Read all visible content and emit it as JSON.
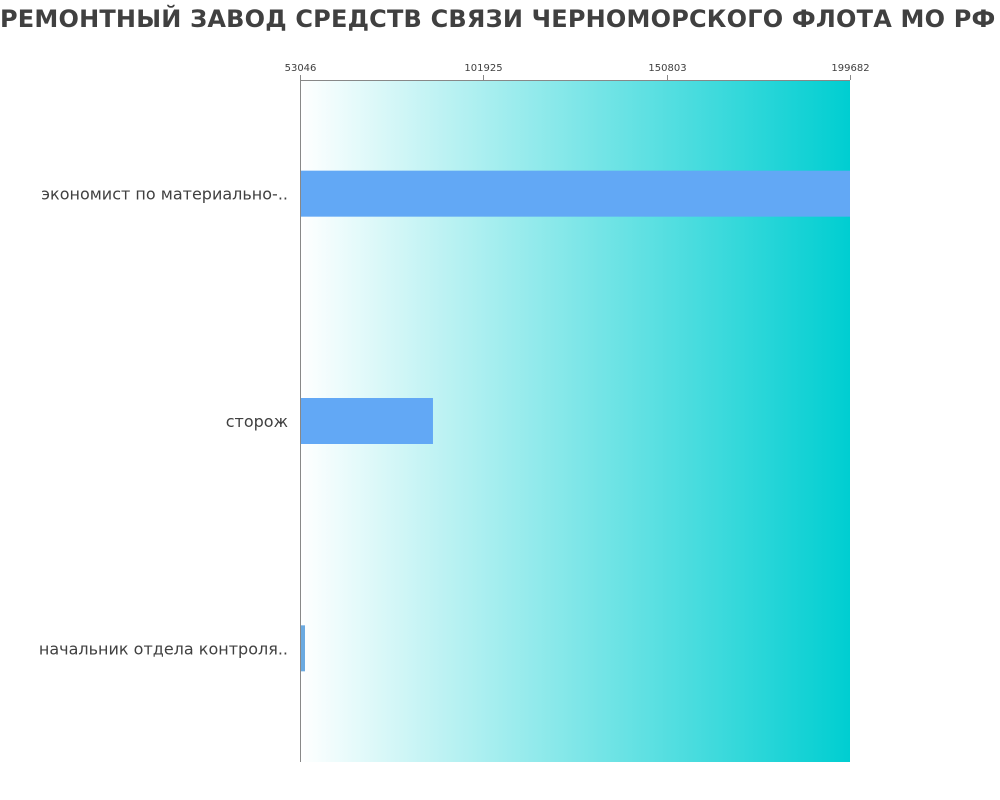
{
  "title": "РЕМОНТНЫЙ ЗАВОД СРЕДСТВ СВЯЗИ ЧЕРНОМОРСКОГО ФЛОТА МО РФ ФИЛИАЛ ФГУП",
  "chart_data": {
    "type": "bar",
    "orientation": "horizontal",
    "title": "РЕМОНТНЫЙ ЗАВОД СРЕДСТВ СВЯЗИ ЧЕРНОМОРСКОГО ФЛОТА МО РФ ФИЛИАЛ ФГУП",
    "categories": [
      "экономист по материально-..",
      "сторож",
      "начальник отдела контроля.."
    ],
    "values": [
      199682,
      88500,
      54300
    ],
    "xlim": [
      53046,
      199682
    ],
    "xticks": [
      53046,
      101925,
      150803,
      199682
    ],
    "x_axis_position": "top",
    "grid": false,
    "legend": "none",
    "colors": {
      "bar": "#62a8f5",
      "bar_small": "#6aa9e0",
      "background_start": "#ffffff",
      "background_end": "#00ced1",
      "axis": "#888888",
      "tick_label": "#404040",
      "category_label": "#404040"
    }
  }
}
